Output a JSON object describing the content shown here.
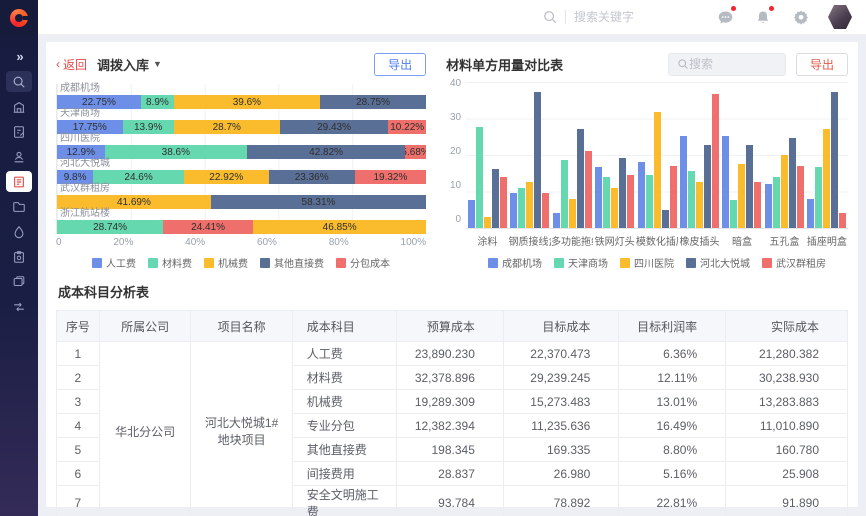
{
  "topbar": {
    "search_placeholder": "搜索关键字"
  },
  "left_panel": {
    "back_label": "返回",
    "title": "调拨入库",
    "export_label": "导出",
    "chart_data": {
      "type": "bar",
      "orientation": "horizontal-stacked-percent",
      "x_ticks": [
        "0",
        "20%",
        "40%",
        "60%",
        "80%",
        "100%"
      ],
      "legend": [
        "人工费",
        "材料费",
        "机械费",
        "其他直接费",
        "分包成本"
      ],
      "colors": {
        "人工费": "#6d8fe8",
        "材料费": "#66d8b0",
        "机械费": "#fabc2d",
        "其他直接费": "#5a6f96",
        "分包成本": "#ee6f6b"
      },
      "rows": [
        {
          "name": "成都机场",
          "segments": [
            {
              "series": "人工费",
              "value": 22.75
            },
            {
              "series": "材料费",
              "value": 8.9
            },
            {
              "series": "机械费",
              "value": 39.6
            },
            {
              "series": "其他直接费",
              "value": 28.75
            }
          ]
        },
        {
          "name": "天津商场",
          "segments": [
            {
              "series": "人工费",
              "value": 17.75
            },
            {
              "series": "材料费",
              "value": 13.9
            },
            {
              "series": "机械费",
              "value": 28.7
            },
            {
              "series": "其他直接费",
              "value": 29.43
            },
            {
              "series": "分包成本",
              "value": 10.22
            }
          ]
        },
        {
          "name": "四川医院",
          "segments": [
            {
              "series": "人工费",
              "value": 12.9
            },
            {
              "series": "材料费",
              "value": 38.6
            },
            {
              "series": "其他直接费",
              "value": 42.82
            },
            {
              "series": "分包成本",
              "value": 5.68
            }
          ]
        },
        {
          "name": "河北大悦城",
          "segments": [
            {
              "series": "人工费",
              "value": 9.8
            },
            {
              "series": "材料费",
              "value": 24.6
            },
            {
              "series": "机械费",
              "value": 22.92
            },
            {
              "series": "其他直接费",
              "value": 23.36
            },
            {
              "series": "分包成本",
              "value": 19.32
            }
          ]
        },
        {
          "name": "武汉群租房",
          "segments": [
            {
              "series": "机械费",
              "value": 41.69
            },
            {
              "series": "其他直接费",
              "value": 58.31
            }
          ]
        },
        {
          "name": "浙江航站楼",
          "segments": [
            {
              "series": "材料费",
              "value": 28.74
            },
            {
              "series": "分包成本",
              "value": 24.41
            },
            {
              "series": "机械费",
              "value": 46.85
            }
          ]
        }
      ]
    }
  },
  "right_panel": {
    "title": "材料单方用量对比表",
    "search_placeholder": "搜索",
    "export_label": "导出",
    "chart_data": {
      "type": "bar",
      "orientation": "vertical-grouped",
      "ymax": 40,
      "y_ticks": [
        0,
        10,
        20,
        30,
        40
      ],
      "categories": [
        "涂料",
        "钢质接线盒",
        "多功能拖线",
        "铁网灯头",
        "模数化插座",
        "橡皮插头",
        "暗盒",
        "五孔盒",
        "插座明盒"
      ],
      "series": [
        {
          "name": "成都机场",
          "color": "#6d8fe8",
          "values": [
            7.5,
            9.5,
            4,
            16.5,
            18,
            25,
            25,
            12,
            8
          ]
        },
        {
          "name": "天津商场",
          "color": "#66d8b0",
          "values": [
            27.5,
            11,
            18.5,
            14,
            14.5,
            15.5,
            7.5,
            14,
            16.5
          ]
        },
        {
          "name": "四川医院",
          "color": "#fabc2d",
          "values": [
            3,
            12.5,
            8,
            11,
            31.5,
            12.5,
            17.5,
            20,
            27
          ]
        },
        {
          "name": "河北大悦城",
          "color": "#5a6f96",
          "values": [
            16,
            37,
            27,
            19,
            5,
            22.5,
            22.5,
            24.5,
            37
          ]
        },
        {
          "name": "武汉群租房",
          "color": "#ee6f6b",
          "values": [
            14,
            9.5,
            21,
            14.5,
            17,
            36.5,
            12.5,
            17,
            4
          ]
        }
      ]
    }
  },
  "table": {
    "title": "成本科目分析表",
    "headers": [
      "序号",
      "所属公司",
      "项目名称",
      "成本科目",
      "预算成本",
      "目标成本",
      "目标利润率",
      "实际成本"
    ],
    "company": "华北分公司",
    "project": "河北大悦城1#地块项目",
    "rows": [
      {
        "no": "1",
        "subject": "人工费",
        "budget": "23,890.230",
        "target": "22,370.473",
        "margin": "6.36%",
        "actual": "21,280.382"
      },
      {
        "no": "2",
        "subject": "材料费",
        "budget": "32,378.896",
        "target": "29,239.245",
        "margin": "12.11%",
        "actual": "30,238.930"
      },
      {
        "no": "3",
        "subject": "机械费",
        "budget": "19,289.309",
        "target": "15,273.483",
        "margin": "13.01%",
        "actual": "13,283.883"
      },
      {
        "no": "4",
        "subject": "专业分包",
        "budget": "12,382.394",
        "target": "11,235.636",
        "margin": "16.49%",
        "actual": "11,010.890"
      },
      {
        "no": "5",
        "subject": "其他直接费",
        "budget": "198.345",
        "target": "169.335",
        "margin": "8.80%",
        "actual": "160.780"
      },
      {
        "no": "6",
        "subject": "间接费用",
        "budget": "28.837",
        "target": "26.980",
        "margin": "5.16%",
        "actual": "25.908"
      },
      {
        "no": "7",
        "subject": "安全文明施工费",
        "budget": "93.784",
        "target": "78.892",
        "margin": "22.81%",
        "actual": "91.890"
      }
    ]
  }
}
